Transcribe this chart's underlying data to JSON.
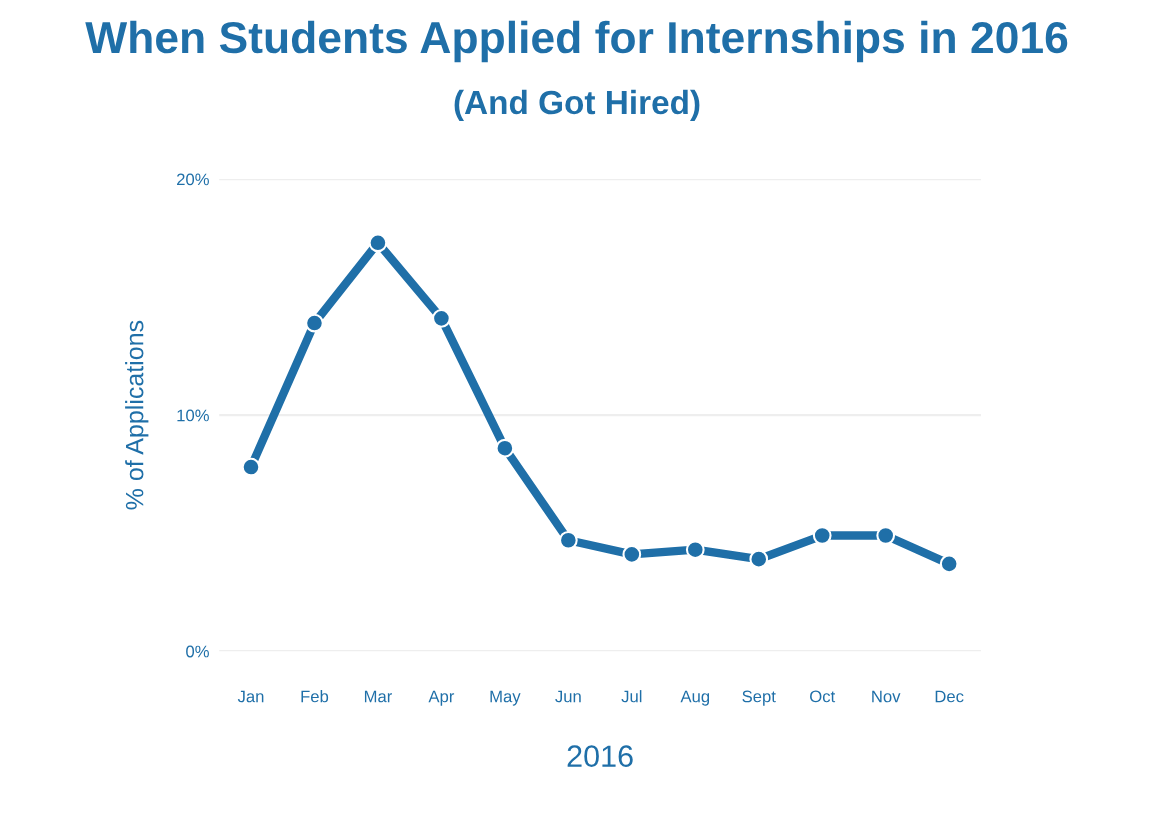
{
  "chart_data": {
    "type": "line",
    "title": "When Students Applied for Internships in 2016",
    "subtitle": "(And Got Hired)",
    "xlabel": "2016",
    "ylabel": "% of Applications",
    "categories": [
      "Jan",
      "Feb",
      "Mar",
      "Apr",
      "May",
      "Jun",
      "Jul",
      "Aug",
      "Sept",
      "Oct",
      "Nov",
      "Dec"
    ],
    "series": [
      {
        "color": "#1f6fa8",
        "values": [
          7.8,
          13.9,
          17.3,
          14.1,
          8.6,
          4.7,
          4.1,
          4.3,
          3.9,
          4.9,
          4.9,
          3.7
        ]
      }
    ],
    "ylim": [
      0,
      20
    ],
    "yticks": [
      {
        "value": 0,
        "label": "0%"
      },
      {
        "value": 10,
        "label": "10%"
      },
      {
        "value": 20,
        "label": "20%"
      }
    ],
    "grid": "y",
    "marker": "circle",
    "line_style": "solid"
  }
}
